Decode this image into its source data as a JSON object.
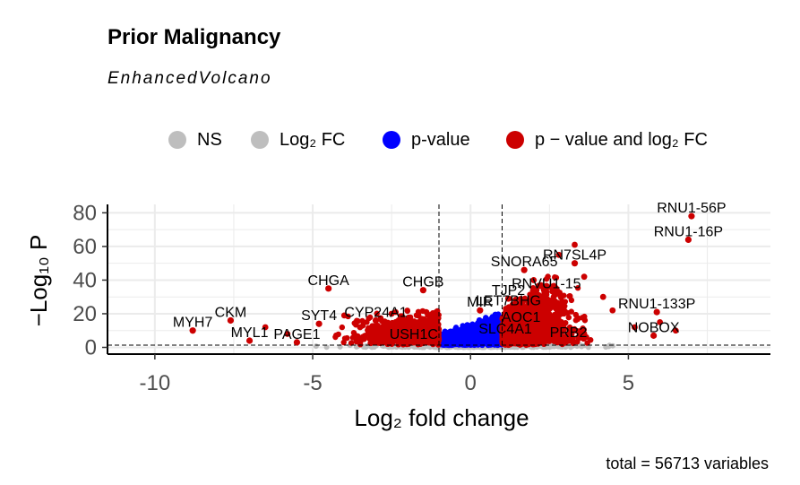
{
  "title": "Prior Malignancy",
  "subtitle": "EnhancedVolcano",
  "caption": "total = 56713 variables",
  "legend": [
    {
      "label": "NS",
      "color": "#bebebe"
    },
    {
      "label": "Log₂ FC",
      "color": "#bebebe"
    },
    {
      "label": "p-value",
      "color": "#0000ff"
    },
    {
      "label": "p − value and log₂ FC",
      "color": "#cc0000"
    }
  ],
  "chart_data": {
    "type": "scatter",
    "title": "Prior Malignancy",
    "subtitle": "EnhancedVolcano",
    "xlabel": "Log₂ fold change",
    "ylabel": "−Log₁₀ P",
    "xlim": [
      -11.5,
      9.5
    ],
    "ylim": [
      -4,
      85
    ],
    "x_ticks": [
      -10,
      -5,
      0,
      5
    ],
    "x_tick_labels": [
      "-10",
      "-5",
      "0",
      "5"
    ],
    "y_ticks": [
      0,
      20,
      40,
      60,
      80
    ],
    "y_tick_labels": [
      "0",
      "20",
      "40",
      "60",
      "80"
    ],
    "fc_cutoff": 1,
    "p_cutoff_log10": 1.3,
    "grid": true,
    "legend_position": "top",
    "colors": {
      "ns": "#bebebe",
      "pvalue": "#0000ff",
      "both": "#cc0000"
    },
    "labeled_points": [
      {
        "gene": "RNU1-56P",
        "x": 7.0,
        "y": 78
      },
      {
        "gene": "RNU1-16P",
        "x": 6.9,
        "y": 64
      },
      {
        "gene": "RN7SL4P",
        "x": 3.3,
        "y": 50
      },
      {
        "gene": "SNORA65",
        "x": 1.7,
        "y": 46
      },
      {
        "gene": "RNVU1-15",
        "x": 2.4,
        "y": 33
      },
      {
        "gene": "TJP2",
        "x": 1.2,
        "y": 29
      },
      {
        "gene": "LET7BHG",
        "x": 1.2,
        "y": 23
      },
      {
        "gene": "MIR",
        "x": 0.3,
        "y": 22
      },
      {
        "gene": "AOC1",
        "x": 1.6,
        "y": 13
      },
      {
        "gene": "SLC4A1",
        "x": 1.1,
        "y": 6
      },
      {
        "gene": "PRB2",
        "x": 3.1,
        "y": 4
      },
      {
        "gene": "RNU1-133P",
        "x": 5.9,
        "y": 21
      },
      {
        "gene": "NOBOX",
        "x": 5.8,
        "y": 7
      },
      {
        "gene": "CHGA",
        "x": -4.5,
        "y": 35
      },
      {
        "gene": "CHGB",
        "x": -1.5,
        "y": 34
      },
      {
        "gene": "CYP24A1",
        "x": -3.0,
        "y": 16
      },
      {
        "gene": "SYT4",
        "x": -4.8,
        "y": 14
      },
      {
        "gene": "CKM",
        "x": -7.6,
        "y": 16
      },
      {
        "gene": "MYH7",
        "x": -8.8,
        "y": 10
      },
      {
        "gene": "MYL1",
        "x": -7.0,
        "y": 4
      },
      {
        "gene": "PAGE1",
        "x": -5.5,
        "y": 3
      },
      {
        "gene": "USH1C",
        "x": -1.8,
        "y": 3
      }
    ],
    "extra_points": [
      {
        "x": 3.3,
        "y": 61
      },
      {
        "x": 3.6,
        "y": 42
      },
      {
        "x": 2.8,
        "y": 55
      },
      {
        "x": 4.2,
        "y": 30
      },
      {
        "x": 4.5,
        "y": 22
      },
      {
        "x": 6.0,
        "y": 15
      },
      {
        "x": 6.5,
        "y": 10
      },
      {
        "x": 5.2,
        "y": 12
      },
      {
        "x": -2.5,
        "y": 20
      },
      {
        "x": -4.0,
        "y": 19
      },
      {
        "x": -6.5,
        "y": 12
      },
      {
        "x": -5.8,
        "y": 8
      },
      {
        "x": -3.5,
        "y": 12
      },
      {
        "x": 2.0,
        "y": 40
      }
    ],
    "point_count": 56713
  }
}
